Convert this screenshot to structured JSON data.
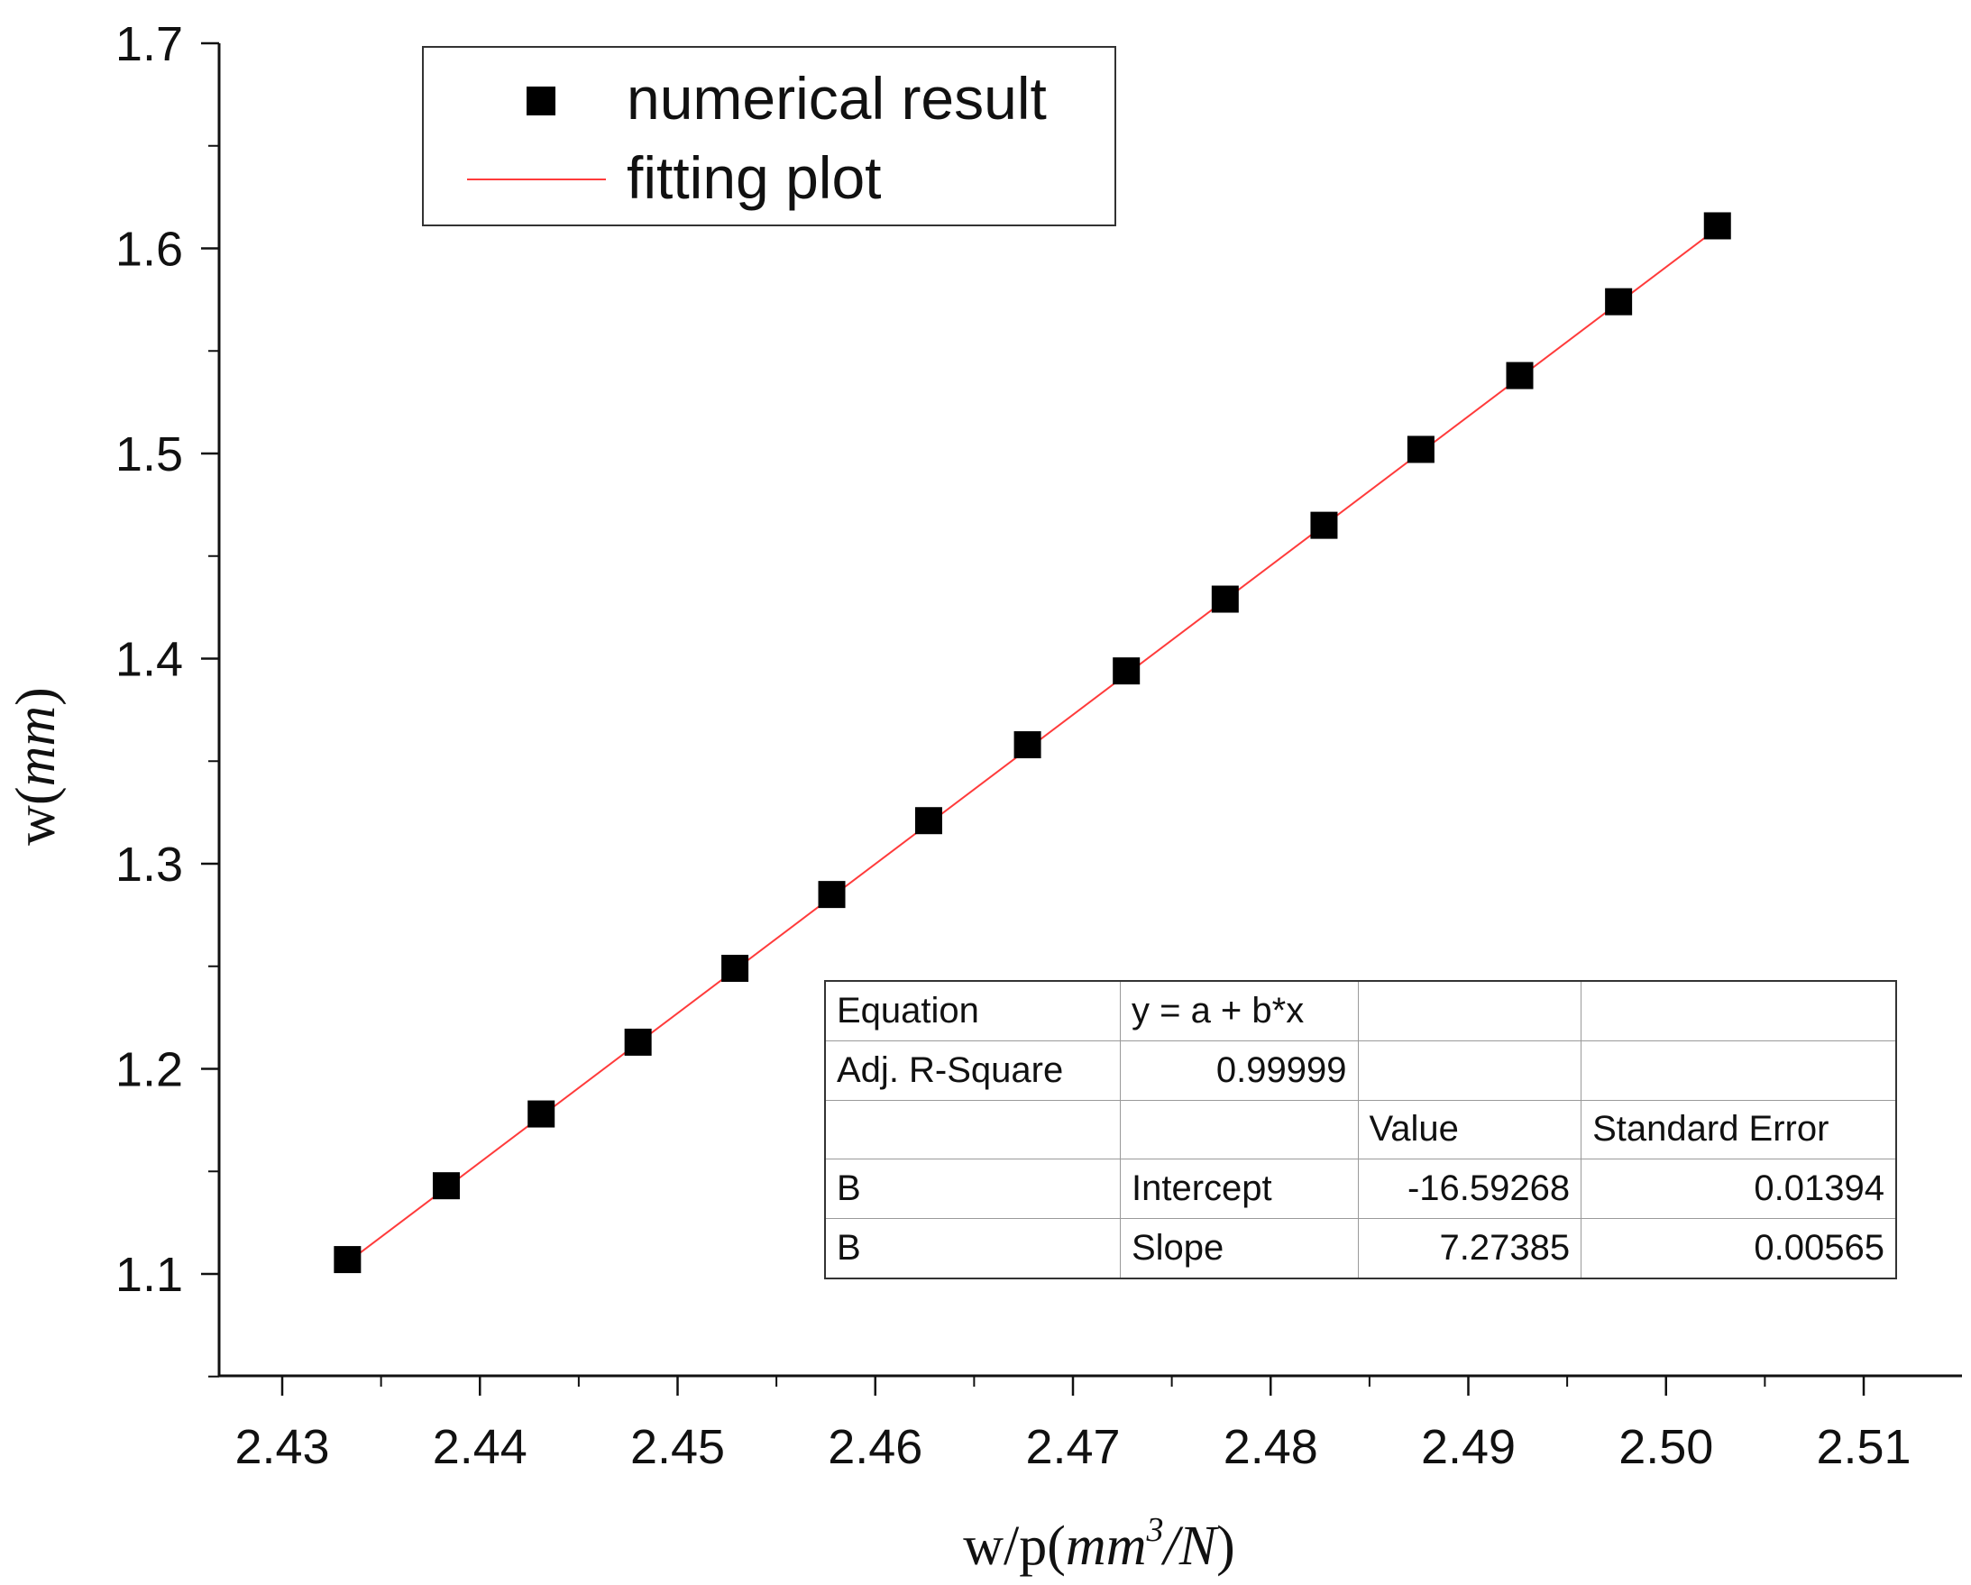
{
  "chart_data": {
    "type": "scatter",
    "xlabel": {
      "prefix": "w/p(",
      "unit": "mm",
      "sup": "3",
      "unit2": "/N",
      "suffix": ")"
    },
    "ylabel": {
      "prefix": "w(",
      "unit": "mm",
      "suffix": ")"
    },
    "xlim": [
      2.425,
      2.515
    ],
    "ylim": [
      1.05,
      1.7
    ],
    "xticks": [
      2.43,
      2.44,
      2.45,
      2.46,
      2.47,
      2.48,
      2.49,
      2.5,
      2.51
    ],
    "xtick_labels": [
      "2.43",
      "2.44",
      "2.45",
      "2.46",
      "2.47",
      "2.48",
      "2.49",
      "2.50",
      "2.51"
    ],
    "yticks": [
      1.1,
      1.2,
      1.3,
      1.4,
      1.5,
      1.6,
      1.7
    ],
    "ytick_labels": [
      "1.1",
      "1.2",
      "1.3",
      "1.4",
      "1.5",
      "1.6",
      "1.7"
    ],
    "grid": false,
    "legend_position": "top-left",
    "series": [
      {
        "name": "numerical result",
        "kind": "marker",
        "marker": "square",
        "color": "#000000",
        "x": [
          2.4333,
          2.4383,
          2.4431,
          2.448,
          2.4529,
          2.4578,
          2.4627,
          2.4677,
          2.4727,
          2.4777,
          2.4827,
          2.4876,
          2.4926,
          2.4976,
          2.5026
        ],
        "y": [
          1.107,
          1.143,
          1.178,
          1.213,
          1.249,
          1.285,
          1.321,
          1.358,
          1.394,
          1.429,
          1.465,
          1.502,
          1.538,
          1.574,
          1.611
        ]
      },
      {
        "name": "fitting plot",
        "kind": "line",
        "color": "#ff3b3b",
        "x": [
          2.4335,
          2.5026
        ],
        "y": [
          1.1071,
          1.6098
        ]
      }
    ],
    "table": [
      [
        "Equation",
        "y = a + b*x",
        "",
        ""
      ],
      [
        "Adj. R-Square",
        "0.99999",
        "",
        ""
      ],
      [
        "",
        "",
        "Value",
        "Standard Error"
      ],
      [
        "B",
        "Intercept",
        "-16.59268",
        "0.01394"
      ],
      [
        "B",
        "Slope",
        "7.27385",
        "0.00565"
      ]
    ]
  }
}
